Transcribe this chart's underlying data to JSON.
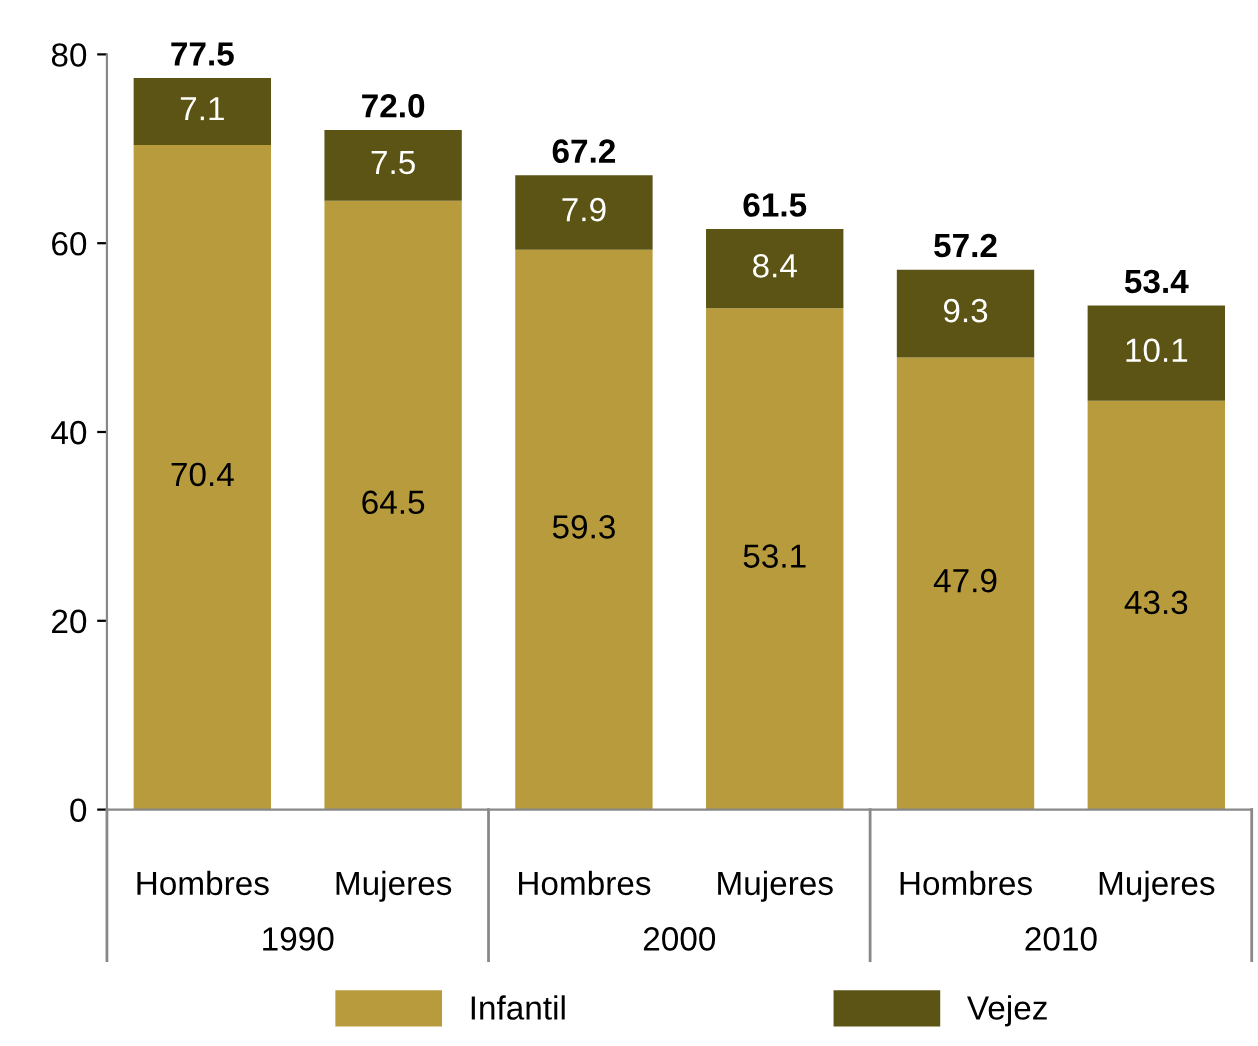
{
  "chart_data": {
    "type": "bar",
    "stacked": true,
    "categories": [
      "Hombres",
      "Mujeres",
      "Hombres",
      "Mujeres",
      "Hombres",
      "Mujeres"
    ],
    "series": [
      {
        "name": "Infantil",
        "color": "#b89b3c",
        "values": [
          70.4,
          64.5,
          59.3,
          53.1,
          47.9,
          43.3
        ]
      },
      {
        "name": "Vejez",
        "color": "#5c5414",
        "values": [
          7.1,
          7.5,
          7.9,
          8.4,
          9.3,
          10.1
        ]
      }
    ],
    "totals": [
      "77.5",
      "72.0",
      "67.2",
      "61.5",
      "57.2",
      "53.4"
    ],
    "annotations": [
      "1990",
      "2000",
      "2010"
    ],
    "data_labels": true,
    "ylim": [
      0,
      80
    ],
    "yticks": [
      0,
      20,
      40,
      60,
      80
    ],
    "grid": false,
    "legend": "bottom"
  }
}
